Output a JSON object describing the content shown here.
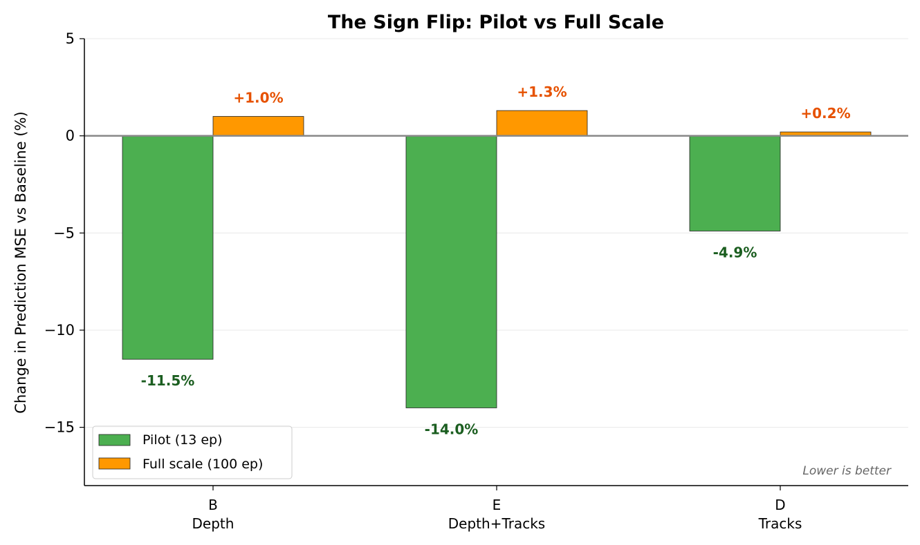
{
  "chart_data": {
    "type": "bar",
    "title": "The Sign Flip: Pilot vs Full Scale",
    "xlabel": "",
    "ylabel": "Change in Prediction MSE vs Baseline (%)",
    "ylim": [
      -18,
      5
    ],
    "yticks": [
      5,
      0,
      -5,
      -10,
      -15
    ],
    "ytick_labels": [
      "5",
      "0",
      "−5",
      "−10",
      "−15"
    ],
    "grid": true,
    "legend_position": "lower-left",
    "categories": [
      {
        "code": "B",
        "name": "Depth"
      },
      {
        "code": "E",
        "name": "Depth+Tracks"
      },
      {
        "code": "D",
        "name": "Tracks"
      }
    ],
    "series": [
      {
        "name": "Pilot (13 ep)",
        "color": "#4caf50",
        "label_color": "#1b5e20",
        "values": [
          -11.5,
          -14.0,
          -4.9
        ],
        "labels": [
          "-11.5%",
          "-14.0%",
          "-4.9%"
        ]
      },
      {
        "name": "Full scale (100 ep)",
        "color": "#ff9800",
        "label_color": "#e65100",
        "values": [
          1.0,
          1.3,
          0.2
        ],
        "labels": [
          "+1.0%",
          "+1.3%",
          "+0.2%"
        ]
      }
    ],
    "annotation": "Lower is better",
    "zero_line_color": "#888888"
  }
}
